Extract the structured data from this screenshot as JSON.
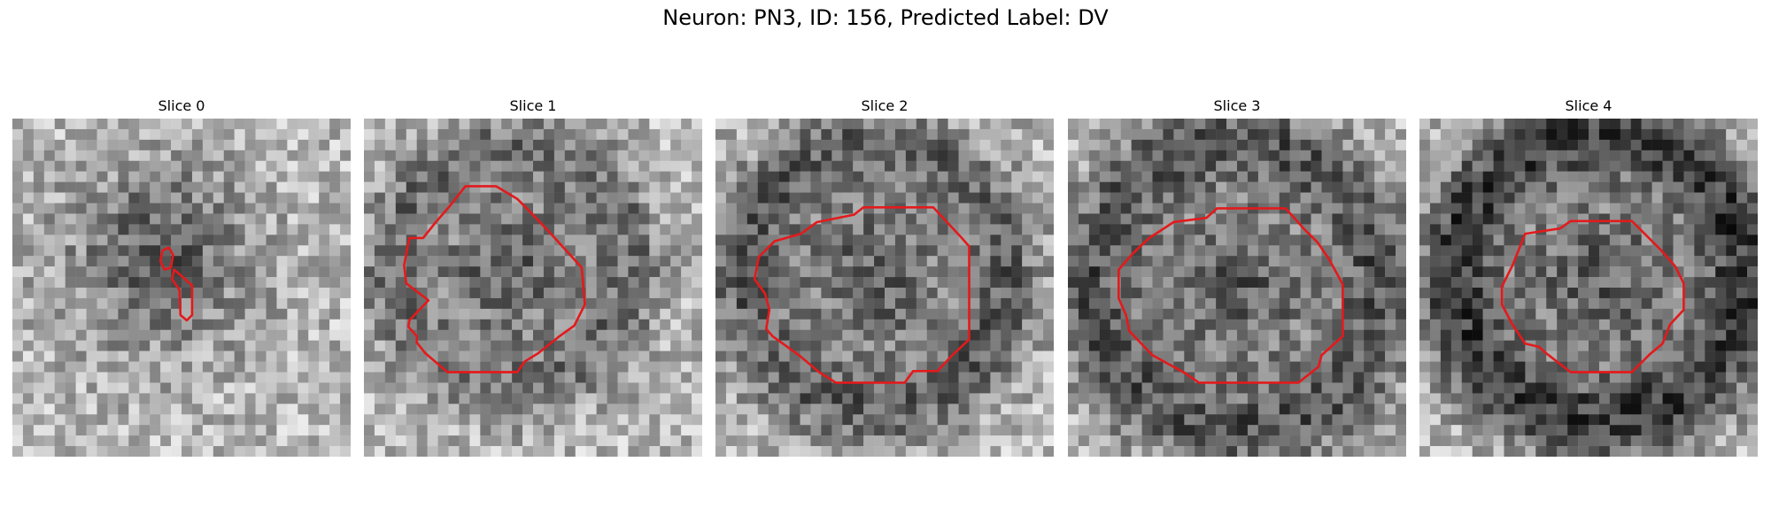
{
  "figure": {
    "title": "Neuron: PN3, ID: 156, Predicted Label: DV",
    "grid_size": 32,
    "contour_color": "#e31a1c",
    "colormap": "gray",
    "panels": [
      {
        "title": "Slice 0",
        "contour": [
          [
            14.2,
            12.5
          ],
          [
            14.8,
            12.2
          ],
          [
            15.2,
            12.9
          ],
          [
            15.0,
            14.1
          ],
          [
            14.4,
            14.3
          ],
          [
            14.0,
            13.5
          ]
        ],
        "contour2": [
          [
            15.3,
            14.3
          ],
          [
            16.0,
            14.9
          ],
          [
            17.0,
            15.8
          ],
          [
            17.0,
            18.6
          ],
          [
            16.5,
            19.1
          ],
          [
            15.9,
            18.6
          ],
          [
            15.8,
            16.2
          ],
          [
            15.1,
            15.2
          ]
        ]
      },
      {
        "title": "Slice 1",
        "contour": [
          [
            9.6,
            6.4
          ],
          [
            12.5,
            6.4
          ],
          [
            14.5,
            7.6
          ],
          [
            15.6,
            8.7
          ],
          [
            17.5,
            10.7
          ],
          [
            20.6,
            14.1
          ],
          [
            20.9,
            17.6
          ],
          [
            19.9,
            19.6
          ],
          [
            18.5,
            20.6
          ],
          [
            16.5,
            22.2
          ],
          [
            15.2,
            23.0
          ],
          [
            14.5,
            24.0
          ],
          [
            7.9,
            24.0
          ],
          [
            5.8,
            22.2
          ],
          [
            5.0,
            21.2
          ],
          [
            5.0,
            20.6
          ],
          [
            4.2,
            19.7
          ],
          [
            4.3,
            19.1
          ],
          [
            6.1,
            17.2
          ],
          [
            4.0,
            15.6
          ],
          [
            3.8,
            13.9
          ],
          [
            4.3,
            11.3
          ],
          [
            5.6,
            11.3
          ],
          [
            6.8,
            9.8
          ],
          [
            8.1,
            8.3
          ]
        ]
      },
      {
        "title": "Slice 2",
        "contour": [
          [
            9.6,
            9.8
          ],
          [
            13.1,
            9.1
          ],
          [
            14.0,
            8.4
          ],
          [
            20.6,
            8.4
          ],
          [
            23.3,
            11.3
          ],
          [
            24.0,
            12.1
          ],
          [
            24.0,
            20.9
          ],
          [
            22.4,
            22.4
          ],
          [
            21.0,
            23.9
          ],
          [
            18.7,
            23.9
          ],
          [
            17.9,
            25.0
          ],
          [
            11.4,
            25.0
          ],
          [
            9.8,
            24.0
          ],
          [
            7.9,
            22.4
          ],
          [
            5.4,
            20.6
          ],
          [
            4.8,
            19.9
          ],
          [
            5.1,
            18.1
          ],
          [
            4.7,
            16.6
          ],
          [
            3.7,
            15.2
          ],
          [
            4.1,
            13.1
          ],
          [
            5.6,
            11.6
          ],
          [
            8.1,
            10.9
          ]
        ]
      },
      {
        "title": "Slice 3",
        "contour": [
          [
            10.0,
            9.8
          ],
          [
            13.1,
            9.4
          ],
          [
            14.1,
            8.5
          ],
          [
            20.6,
            8.5
          ],
          [
            22.3,
            10.4
          ],
          [
            23.6,
            11.7
          ],
          [
            24.7,
            13.3
          ],
          [
            26.0,
            15.7
          ],
          [
            26.0,
            20.6
          ],
          [
            24.0,
            22.4
          ],
          [
            23.7,
            23.5
          ],
          [
            21.8,
            25.0
          ],
          [
            12.4,
            25.0
          ],
          [
            11.1,
            24.1
          ],
          [
            8.0,
            22.4
          ],
          [
            5.8,
            20.1
          ],
          [
            5.5,
            18.6
          ],
          [
            4.8,
            17.0
          ],
          [
            4.8,
            14.3
          ],
          [
            6.2,
            12.7
          ],
          [
            7.7,
            11.3
          ]
        ]
      },
      {
        "title": "Slice 4",
        "contour": [
          [
            10.0,
            10.9
          ],
          [
            13.3,
            10.4
          ],
          [
            14.3,
            9.7
          ],
          [
            20.1,
            9.7
          ],
          [
            22.9,
            12.5
          ],
          [
            24.2,
            14.0
          ],
          [
            25.0,
            15.6
          ],
          [
            25.0,
            18.1
          ],
          [
            23.7,
            19.5
          ],
          [
            23.0,
            21.3
          ],
          [
            21.8,
            22.3
          ],
          [
            20.1,
            24.0
          ],
          [
            14.3,
            24.0
          ],
          [
            12.1,
            22.3
          ],
          [
            11.3,
            21.6
          ],
          [
            10.0,
            21.3
          ],
          [
            8.8,
            19.5
          ],
          [
            7.8,
            17.6
          ],
          [
            7.8,
            15.9
          ],
          [
            8.8,
            13.9
          ]
        ]
      }
    ]
  }
}
